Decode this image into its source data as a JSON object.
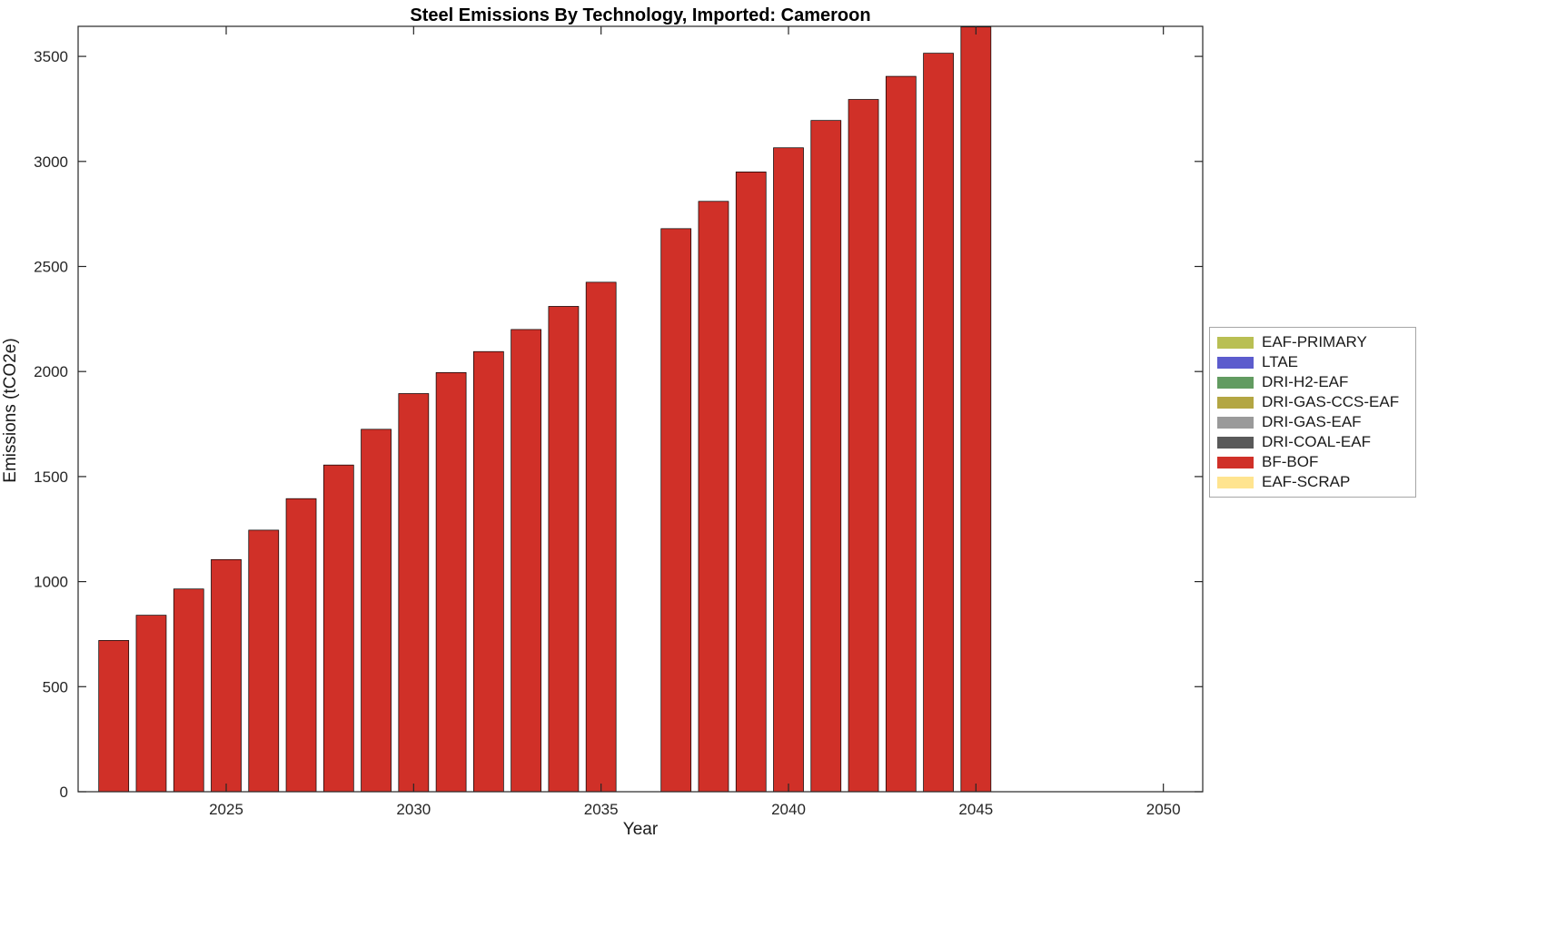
{
  "figure": {
    "background": "#ffffff",
    "axes_color": "#262626"
  },
  "legend": [
    {
      "label": "EAF-PRIMARY",
      "color": "#b9bf53"
    },
    {
      "label": "LTAE",
      "color": "#5c5ccd"
    },
    {
      "label": "DRI-H2-EAF",
      "color": "#629b61"
    },
    {
      "label": "DRI-GAS-CCS-EAF",
      "color": "#b3a643"
    },
    {
      "label": "DRI-GAS-EAF",
      "color": "#9a9a9a"
    },
    {
      "label": "DRI-COAL-EAF",
      "color": "#595959"
    },
    {
      "label": "BF-BOF",
      "color": "#d03028"
    },
    {
      "label": "EAF-SCRAP",
      "color": "#ffe48f"
    }
  ],
  "chart_data": {
    "type": "bar",
    "title": "Steel Emissions By Technology, Imported: Cameroon",
    "xlabel": "Year",
    "ylabel": "Emissions (tCO2e)",
    "x": [
      2022,
      2023,
      2024,
      2025,
      2026,
      2027,
      2028,
      2029,
      2030,
      2031,
      2032,
      2033,
      2034,
      2035,
      2036,
      2037,
      2038,
      2039,
      2040,
      2041,
      2042,
      2043,
      2044,
      2045
    ],
    "series": [
      {
        "name": "BF-BOF",
        "color": "#d03028",
        "values": [
          720,
          840,
          965,
          1105,
          1245,
          1395,
          1555,
          1725,
          1895,
          1995,
          2095,
          2200,
          2310,
          2425,
          0,
          2680,
          2810,
          2950,
          3065,
          3195,
          3295,
          3405,
          3515,
          3640
        ]
      }
    ],
    "note": "Only BF-BOF bars visible; 2036 has no bar (gap). Other legend technologies have zero visible emissions.",
    "xlim": [
      2021.05,
      2051.05
    ],
    "ylim": [
      0,
      3643
    ],
    "x_ticks": [
      2025,
      2030,
      2035,
      2040,
      2045,
      2050
    ],
    "y_ticks": [
      0,
      500,
      1000,
      1500,
      2000,
      2500,
      3000,
      3500
    ],
    "grid": false,
    "legend_position": "right-outside",
    "bar_edge_color": "#000000",
    "bar_rel_width": 0.8
  }
}
